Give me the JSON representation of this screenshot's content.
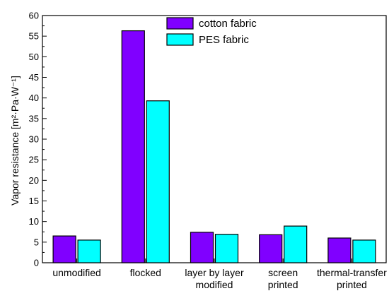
{
  "chart_data": {
    "type": "bar",
    "categories": [
      [
        "unmodified"
      ],
      [
        "flocked"
      ],
      [
        "layer by layer",
        "modified"
      ],
      [
        "screen",
        "printed"
      ],
      [
        "thermal-transfer",
        "printed"
      ]
    ],
    "series": [
      {
        "name": "cotton fabric",
        "color": "#8000ff",
        "values": [
          6.5,
          56.3,
          7.4,
          6.8,
          6.0
        ]
      },
      {
        "name": "PES fabric",
        "color": "#00ffff",
        "values": [
          5.5,
          39.3,
          6.9,
          8.9,
          5.5
        ]
      }
    ],
    "ylabel": "Vapor resistance  [m²·Pa·W⁻¹]",
    "ylim": [
      0,
      60
    ],
    "yticks": [
      0,
      5,
      10,
      15,
      20,
      25,
      30,
      35,
      40,
      45,
      50,
      55,
      60
    ],
    "xlabel": "",
    "legend_position": "top-center",
    "grid": false
  }
}
